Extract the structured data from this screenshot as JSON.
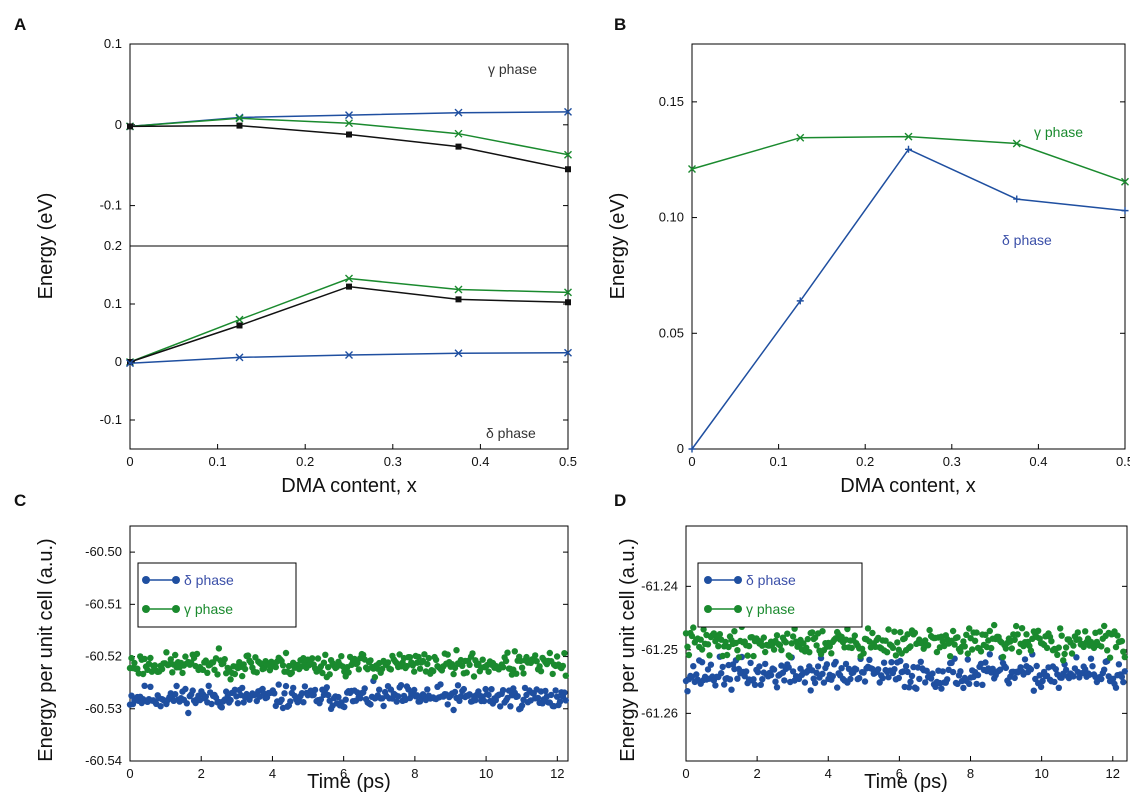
{
  "panel_labels": [
    "A",
    "B",
    "C",
    "D"
  ],
  "colors": {
    "blue": "#1f4fa0",
    "green": "#1a8a2e",
    "black": "#111111",
    "delta_text": "#3a4fa8",
    "gamma_text": "#1a8a2e",
    "gray_text": "#333333"
  },
  "chart_data": [
    {
      "id": "A_top",
      "type": "line",
      "xlim": [
        0,
        0.5
      ],
      "ylim": [
        -0.15,
        0.1
      ],
      "yticks": [
        "-0.1",
        "0",
        "0.1"
      ],
      "ytick_values": [
        -0.1,
        0,
        0.1
      ],
      "ylabel": "Energy (eV)",
      "annotation": "γ phase",
      "x": [
        0,
        0.125,
        0.25,
        0.375,
        0.5
      ],
      "series": [
        {
          "color": "blue",
          "marker": "x",
          "values": [
            -0.002,
            0.009,
            0.012,
            0.015,
            0.016
          ]
        },
        {
          "color": "green",
          "marker": "x",
          "values": [
            -0.002,
            0.008,
            0.002,
            -0.011,
            -0.037
          ]
        },
        {
          "color": "black",
          "marker": "square",
          "values": [
            -0.002,
            -0.001,
            -0.012,
            -0.027,
            -0.055
          ]
        }
      ]
    },
    {
      "id": "A_bottom",
      "type": "line",
      "xlim": [
        0,
        0.5
      ],
      "ylim": [
        -0.15,
        0.2
      ],
      "xticks": [
        "0",
        "0.1",
        "0.2",
        "0.3",
        "0.4",
        "0.5"
      ],
      "xtick_values": [
        0,
        0.1,
        0.2,
        0.3,
        0.4,
        0.5
      ],
      "yticks": [
        "-0.1",
        "0",
        "0.1",
        "0.2"
      ],
      "ytick_values": [
        -0.1,
        0,
        0.1,
        0.2
      ],
      "xlabel": "DMA content, x",
      "annotation": "δ phase",
      "x": [
        0,
        0.125,
        0.25,
        0.375,
        0.5
      ],
      "series": [
        {
          "color": "green",
          "marker": "x",
          "values": [
            0,
            0.073,
            0.144,
            0.125,
            0.12
          ]
        },
        {
          "color": "black",
          "marker": "square",
          "values": [
            0,
            0.063,
            0.13,
            0.108,
            0.103
          ]
        },
        {
          "color": "blue",
          "marker": "x",
          "values": [
            -0.002,
            0.008,
            0.012,
            0.015,
            0.016
          ]
        }
      ]
    },
    {
      "id": "B",
      "type": "line",
      "xlim": [
        0,
        0.5
      ],
      "ylim": [
        0,
        0.175
      ],
      "xticks": [
        "0",
        "0.1",
        "0.2",
        "0.3",
        "0.4",
        "0.5"
      ],
      "xtick_values": [
        0,
        0.1,
        0.2,
        0.3,
        0.4,
        0.5
      ],
      "yticks": [
        "0",
        "0.05",
        "0.10",
        "0.15"
      ],
      "ytick_values": [
        0,
        0.05,
        0.1,
        0.15
      ],
      "xlabel": "DMA content, x",
      "ylabel": "Energy (eV)",
      "annotations": {
        "gamma": "γ phase",
        "delta": "δ phase"
      },
      "x": [
        0,
        0.125,
        0.25,
        0.375,
        0.5
      ],
      "series": [
        {
          "name": "γ phase",
          "color": "green",
          "marker": "x",
          "values": [
            0.121,
            0.1345,
            0.135,
            0.132,
            0.1155
          ]
        },
        {
          "name": "δ phase",
          "color": "blue",
          "marker": "+",
          "values": [
            0,
            0.064,
            0.1295,
            0.108,
            0.103
          ]
        }
      ]
    },
    {
      "id": "C",
      "type": "scatter",
      "xlim": [
        0,
        12.3
      ],
      "ylim": [
        -60.54,
        -60.495
      ],
      "xticks": [
        "0",
        "2",
        "4",
        "6",
        "8",
        "10",
        "12"
      ],
      "xtick_values": [
        0,
        2,
        4,
        6,
        8,
        10,
        12
      ],
      "yticks": [
        "-60.50",
        "-60.51",
        "-60.52",
        "-60.53",
        "-60.54"
      ],
      "ytick_values": [
        -60.5,
        -60.51,
        -60.52,
        -60.53,
        -60.54
      ],
      "xlabel": "Time (ps)",
      "ylabel": "Energy per unit cell (a.u.)",
      "legend_position": "top-left",
      "series": [
        {
          "name": "δ phase",
          "color": "blue",
          "mean": -60.5278,
          "spread": 0.0011,
          "n": 300,
          "seed": 11
        },
        {
          "name": "γ phase",
          "color": "green",
          "mean": -60.5215,
          "spread": 0.0011,
          "n": 300,
          "seed": 23
        }
      ]
    },
    {
      "id": "D",
      "type": "scatter",
      "xlim": [
        0,
        12.4
      ],
      "ylim": [
        -61.2675,
        -61.2305
      ],
      "xticks": [
        "0",
        "2",
        "4",
        "6",
        "8",
        "10",
        "12"
      ],
      "xtick_values": [
        0,
        2,
        4,
        6,
        8,
        10,
        12
      ],
      "yticks": [
        "-61.24",
        "-61.25",
        "-61.26"
      ],
      "ytick_values": [
        -61.24,
        -61.25,
        -61.26
      ],
      "xlabel": "Time (ps)",
      "ylabel": "Energy per unit cell (a.u.)",
      "legend_position": "top-left",
      "series": [
        {
          "name": "δ phase",
          "color": "blue",
          "mean": -61.2538,
          "spread": 0.0012,
          "n": 300,
          "seed": 37
        },
        {
          "name": "γ phase",
          "color": "green",
          "mean": -61.2488,
          "spread": 0.0011,
          "n": 300,
          "seed": 41
        }
      ]
    }
  ]
}
